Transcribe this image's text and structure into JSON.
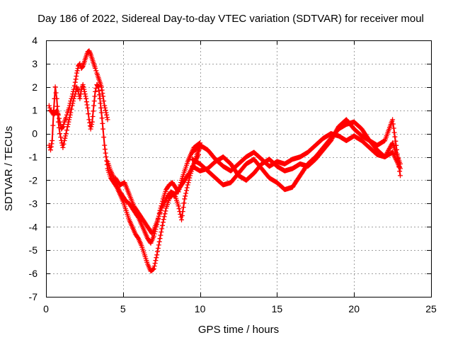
{
  "chart_data": {
    "type": "scatter",
    "title": "Day 186 of 2022, Sidereal Day-to-day VTEC variation (SDTVAR) for receiver moul",
    "xlabel": "GPS time / hours",
    "ylabel": "SDTVAR / TECUs",
    "xlim": [
      0,
      25
    ],
    "ylim": [
      -7,
      4
    ],
    "xticks": [
      0,
      5,
      10,
      15,
      20,
      25
    ],
    "yticks": [
      4,
      3,
      2,
      1,
      0,
      -1,
      -2,
      -3,
      -4,
      -5,
      -6,
      -7
    ],
    "grid": true,
    "marker": "plus",
    "color": "#ff0000",
    "series": [
      {
        "x": [
          0.2,
          0.3,
          0.4,
          0.5,
          0.6,
          0.7,
          0.8,
          0.9,
          1.0,
          1.1,
          1.2,
          1.3,
          1.4,
          1.5,
          1.6,
          1.7,
          1.8,
          1.9,
          2.0,
          2.1,
          2.2,
          2.3,
          2.4,
          2.5,
          2.6,
          2.7,
          2.8,
          2.9,
          3.0,
          3.1,
          3.2,
          3.3,
          3.4,
          3.5,
          3.6,
          3.7,
          3.8,
          3.9,
          4.0
        ],
        "y": [
          1.2,
          1.0,
          0.9,
          0.8,
          0.9,
          1.0,
          0.8,
          0.5,
          0.2,
          0.3,
          0.5,
          0.7,
          0.9,
          1.1,
          1.4,
          1.6,
          1.9,
          2.2,
          2.6,
          2.9,
          3.0,
          2.8,
          2.9,
          3.1,
          3.3,
          3.5,
          3.55,
          3.4,
          3.2,
          3.0,
          2.8,
          2.6,
          2.4,
          2.2,
          2.0,
          1.6,
          1.2,
          0.9,
          0.6
        ]
      },
      {
        "x": [
          0.2,
          0.3,
          0.4,
          0.5,
          0.6,
          0.7,
          0.8,
          0.9,
          1.0,
          1.1,
          1.2,
          1.3,
          1.4,
          1.5,
          1.6,
          1.7,
          1.8,
          1.9,
          2.0,
          2.1,
          2.2,
          2.3,
          2.4,
          2.5,
          2.6,
          2.7,
          2.8,
          2.9,
          3.0,
          3.1,
          3.2,
          3.3,
          3.4,
          3.5,
          3.6,
          3.7,
          3.8,
          3.9,
          4.0,
          4.2,
          4.4,
          4.6,
          4.8,
          5.0,
          5.2,
          5.4,
          5.6,
          5.8,
          6.0,
          6.2,
          6.4,
          6.6,
          6.8,
          7.0,
          7.2,
          7.4,
          7.6,
          7.8,
          8.0,
          8.2,
          8.4,
          8.6,
          8.8,
          9.0,
          9.2,
          9.4,
          9.6,
          9.8,
          10.0
        ],
        "y": [
          -0.5,
          -0.7,
          -0.3,
          1.0,
          2.0,
          1.5,
          0.5,
          0.0,
          -0.3,
          -0.6,
          -0.3,
          0.0,
          0.3,
          0.6,
          0.9,
          1.2,
          1.5,
          1.7,
          2.0,
          1.8,
          1.5,
          1.9,
          2.1,
          1.8,
          1.5,
          1.1,
          0.6,
          0.2,
          0.5,
          1.2,
          1.8,
          2.1,
          2.0,
          1.5,
          0.9,
          0.2,
          -0.5,
          -1.0,
          -1.5,
          -1.9,
          -2.1,
          -2.3,
          -2.6,
          -2.9,
          -3.3,
          -3.7,
          -4.0,
          -4.3,
          -4.5,
          -4.8,
          -5.2,
          -5.6,
          -5.9,
          -5.8,
          -5.2,
          -4.5,
          -3.8,
          -3.2,
          -2.8,
          -2.6,
          -2.7,
          -3.1,
          -3.7,
          -2.8,
          -2.2,
          -1.7,
          -1.3,
          -0.9,
          -0.6
        ]
      },
      {
        "x": [
          4.0,
          4.2,
          4.4,
          4.6,
          4.8,
          5.0,
          5.2,
          5.4,
          5.6,
          5.8,
          6.0,
          6.2,
          6.4,
          6.6,
          6.8,
          7.0,
          7.2,
          7.4,
          7.6,
          7.8,
          8.0,
          8.2,
          8.4,
          8.6,
          8.8,
          9.0,
          9.2,
          9.4,
          9.6,
          9.8,
          10.0
        ],
        "y": [
          -1.2,
          -1.6,
          -1.9,
          -2.2,
          -2.5,
          -2.7,
          -2.9,
          -3.0,
          -3.2,
          -3.4,
          -3.6,
          -3.9,
          -4.2,
          -4.5,
          -4.7,
          -4.4,
          -3.9,
          -3.3,
          -2.8,
          -2.4,
          -2.2,
          -2.1,
          -2.3,
          -2.5,
          -2.0,
          -1.6,
          -1.2,
          -0.9,
          -0.6,
          -0.5,
          -0.4
        ]
      },
      {
        "x": [
          4.5,
          4.8,
          5.1,
          5.4,
          5.7,
          6.0,
          6.3,
          6.6,
          6.9,
          7.2,
          7.5,
          7.8,
          8.1,
          8.4,
          8.7,
          9.0,
          9.3,
          9.6,
          9.9
        ],
        "y": [
          -1.9,
          -2.2,
          -2.1,
          -2.6,
          -3.1,
          -3.4,
          -3.7,
          -4.0,
          -4.3,
          -3.8,
          -3.2,
          -2.8,
          -2.5,
          -2.6,
          -2.3,
          -2.0,
          -1.7,
          -1.3,
          -0.9
        ]
      },
      {
        "x": [
          9.5,
          10.0,
          10.5,
          11.0,
          11.5,
          12.0,
          12.5,
          13.0,
          13.5,
          14.0,
          14.5,
          15.0,
          15.5,
          16.0,
          16.5,
          17.0,
          17.5,
          18.0,
          18.5,
          19.0,
          19.5,
          20.0,
          20.5,
          21.0,
          21.5,
          22.0,
          22.5,
          23.0
        ],
        "y": [
          -0.8,
          -0.5,
          -0.7,
          -1.1,
          -1.4,
          -1.6,
          -1.3,
          -1.0,
          -0.8,
          -1.1,
          -1.4,
          -1.2,
          -1.3,
          -1.1,
          -1.0,
          -0.8,
          -0.5,
          -0.2,
          0.0,
          -0.1,
          -0.3,
          -0.1,
          -0.3,
          -0.6,
          -0.9,
          -1.0,
          -0.4,
          -1.3
        ]
      },
      {
        "x": [
          9.5,
          10.0,
          10.5,
          11.0,
          11.5,
          12.0,
          12.5,
          13.0,
          13.5,
          14.0,
          14.5,
          15.0,
          15.5,
          16.0,
          16.5,
          17.0,
          17.5,
          18.0,
          18.5,
          19.0,
          19.5,
          20.0,
          20.5,
          21.0,
          21.5,
          22.0,
          22.5,
          23.0
        ],
        "y": [
          -1.1,
          -1.3,
          -1.6,
          -1.9,
          -2.2,
          -2.1,
          -1.7,
          -1.3,
          -1.1,
          -1.5,
          -1.9,
          -2.1,
          -2.4,
          -2.3,
          -1.8,
          -1.3,
          -1.0,
          -0.6,
          -0.2,
          0.2,
          0.4,
          0.5,
          0.2,
          -0.3,
          -0.7,
          -1.0,
          -0.8,
          -1.5
        ]
      },
      {
        "x": [
          9.5,
          10.0,
          10.5,
          11.0,
          11.5,
          12.0,
          12.5,
          13.0,
          13.5,
          14.0,
          14.5,
          15.0,
          15.5,
          16.0,
          16.5,
          17.0,
          17.5,
          18.0,
          18.5,
          19.0,
          19.5,
          20.0,
          20.5,
          21.0,
          21.5,
          22.0,
          22.5,
          23.0
        ],
        "y": [
          -1.4,
          -1.6,
          -1.5,
          -1.2,
          -1.0,
          -1.3,
          -1.8,
          -2.0,
          -1.7,
          -1.3,
          -1.1,
          -1.4,
          -1.6,
          -1.5,
          -1.3,
          -1.4,
          -1.1,
          -0.7,
          -0.3,
          0.3,
          0.6,
          0.2,
          -0.1,
          -0.3,
          -0.5,
          -0.3,
          0.6,
          -1.8
        ]
      }
    ]
  }
}
